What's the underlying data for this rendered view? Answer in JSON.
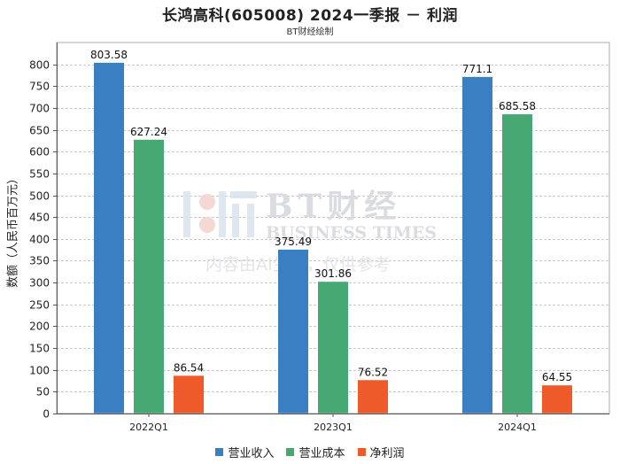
{
  "chart_data": {
    "type": "bar",
    "title": "长鸿高科(605008) 2024一季报 － 利润",
    "subtitle": "BT财经绘制",
    "ylabel": "数额（人民币百万元）",
    "xlabel": "",
    "categories": [
      "2022Q1",
      "2023Q1",
      "2024Q1"
    ],
    "ylim": [
      0,
      850
    ],
    "yticks": [
      0,
      50,
      100,
      150,
      200,
      250,
      300,
      350,
      400,
      450,
      500,
      550,
      600,
      650,
      700,
      750,
      800
    ],
    "grid": true,
    "legend_position": "bottom",
    "series": [
      {
        "name": "营业收入",
        "values": [
          803.58,
          375.49,
          771.1
        ],
        "labels": [
          "803.58",
          "375.49",
          "771.1"
        ],
        "color": "#3a7fc1"
      },
      {
        "name": "营业成本",
        "values": [
          627.24,
          301.86,
          685.58
        ],
        "labels": [
          "627.24",
          "301.86",
          "685.58"
        ],
        "color": "#48a874"
      },
      {
        "name": "净利润",
        "values": [
          86.54,
          76.52,
          64.55
        ],
        "labels": [
          "86.54",
          "76.52",
          "64.55"
        ],
        "color": "#ee5a2a"
      }
    ]
  },
  "watermark": {
    "brand_cn": "BT财经",
    "brand_en": "BUSINESS TIMES",
    "notice": "内容由AI生成，仅供参考"
  }
}
